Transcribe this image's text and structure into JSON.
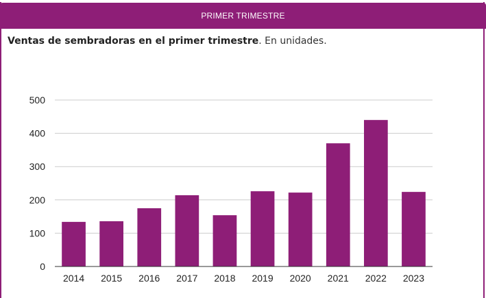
{
  "panel": {
    "header_title": "PRIMER TRIMESTRE",
    "subtitle_bold": "Ventas de sembradoras en el primer trimestre",
    "subtitle_rest": ". En unidades."
  },
  "colors": {
    "accent": "#8e1e77",
    "grid": "#cccccc",
    "axis": "#333333"
  },
  "chart_data": {
    "type": "bar",
    "title": "Ventas de sembradoras en el primer trimestre",
    "subtitle": "En unidades.",
    "categories": [
      "2014",
      "2015",
      "2016",
      "2017",
      "2018",
      "2019",
      "2020",
      "2021",
      "2022",
      "2023"
    ],
    "values": [
      134,
      136,
      175,
      214,
      154,
      226,
      222,
      370,
      440,
      224
    ],
    "ylim": [
      0,
      500
    ],
    "yticks": [
      0,
      100,
      200,
      300,
      400,
      500
    ],
    "xlabel": "",
    "ylabel": "",
    "grid": true,
    "legend": "none",
    "bar_color": "#8e1e77"
  }
}
